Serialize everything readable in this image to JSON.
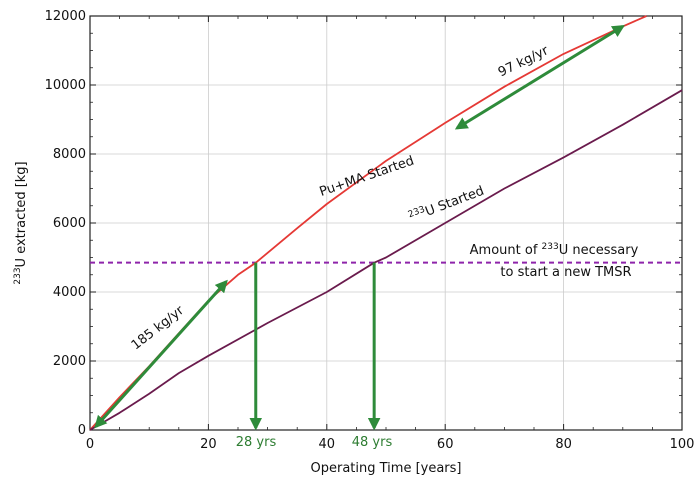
{
  "chart_data": {
    "type": "line",
    "title": "",
    "xlabel": "Operating Time [years]",
    "ylabel_parts": [
      "233",
      "U extracted [kg]"
    ],
    "xlim": [
      0,
      100
    ],
    "ylim": [
      0,
      12000
    ],
    "xticks": [
      0,
      20,
      40,
      60,
      80,
      100
    ],
    "yticks": [
      0,
      2000,
      4000,
      6000,
      8000,
      10000,
      12000
    ],
    "grid": true,
    "series": [
      {
        "name": "PuMA",
        "color": "#e53935",
        "x": [
          0,
          5,
          10,
          15,
          20,
          25,
          28,
          35,
          40,
          50,
          60,
          70,
          80,
          90,
          94
        ],
        "y": [
          0,
          950,
          1850,
          2800,
          3750,
          4500,
          4850,
          5850,
          6550,
          7800,
          8900,
          9950,
          10900,
          11700,
          12000
        ]
      },
      {
        "name": "U233",
        "color": "#6a1b4d",
        "x": [
          0,
          5,
          10,
          15,
          20,
          30,
          40,
          48,
          50,
          60,
          70,
          80,
          90,
          100
        ],
        "y": [
          0,
          500,
          1050,
          1650,
          2150,
          3100,
          4000,
          4850,
          5000,
          6000,
          7000,
          7900,
          8850,
          9850
        ]
      }
    ],
    "threshold": {
      "y": 4850,
      "color": "#8e24aa",
      "label_line1_pre": "Amount of ",
      "label_line1_sup": "233",
      "label_line1_post": "U necessary",
      "label_line2": "to start a new TMSR"
    },
    "annotations": {
      "puma_started": "Pu+MA Started",
      "u233_started_sup": "233",
      "u233_started_post": "U Started",
      "rate_early": "185 kg/yr",
      "rate_late": "97 kg/yr",
      "years_a": "28 yrs",
      "years_b": "48 yrs"
    },
    "markers": {
      "years_a_x": 28,
      "years_b_x": 48,
      "arrow_color": "#2e8b3a"
    }
  }
}
